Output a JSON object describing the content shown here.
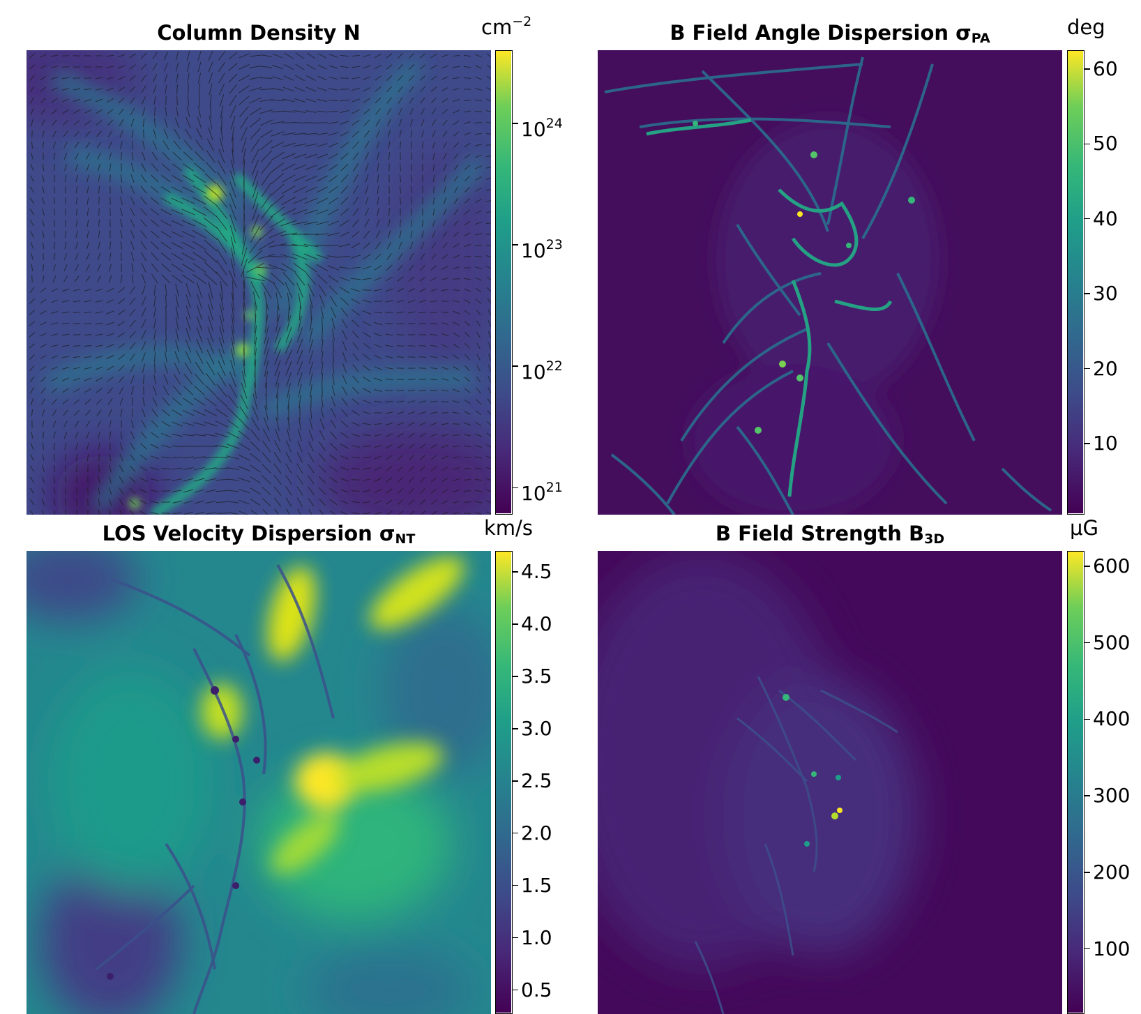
{
  "chart_data": [
    {
      "type": "heatmap",
      "title": "Column Density N",
      "title_sub": "",
      "colorbar_unit": "cm",
      "colorbar_unit_sup": "−2",
      "colormap": "viridis",
      "colorbar_scale": "log",
      "colorbar_range": [
        6e+20,
        4e+24
      ],
      "colorbar_ticks": [
        {
          "base": "10",
          "exp": "21",
          "value": 1e+21
        },
        {
          "base": "10",
          "exp": "22",
          "value": 1e+22
        },
        {
          "base": "10",
          "exp": "23",
          "value": 1e+23
        },
        {
          "base": "10",
          "exp": "24",
          "value": 1e+24
        }
      ],
      "overlay": "magnetic field vectors"
    },
    {
      "type": "heatmap",
      "title": "B Field Angle Dispersion σ",
      "title_sub": "PA",
      "colorbar_unit": "deg",
      "colorbar_unit_sup": "",
      "colormap": "viridis",
      "colorbar_scale": "linear",
      "colorbar_range": [
        0.5,
        62.5
      ],
      "colorbar_ticks": [
        {
          "base": "10",
          "exp": "",
          "value": 10
        },
        {
          "base": "20",
          "exp": "",
          "value": 20
        },
        {
          "base": "30",
          "exp": "",
          "value": 30
        },
        {
          "base": "40",
          "exp": "",
          "value": 40
        },
        {
          "base": "50",
          "exp": "",
          "value": 50
        },
        {
          "base": "60",
          "exp": "",
          "value": 60
        }
      ]
    },
    {
      "type": "heatmap",
      "title": "LOS Velocity Dispersion σ",
      "title_sub": "NT",
      "colorbar_unit": "km/s",
      "colorbar_unit_sup": "",
      "colormap": "viridis",
      "colorbar_scale": "linear",
      "colorbar_range": [
        0.27,
        4.7
      ],
      "colorbar_ticks": [
        {
          "base": "0.5",
          "exp": "",
          "value": 0.5
        },
        {
          "base": "1.0",
          "exp": "",
          "value": 1.0
        },
        {
          "base": "1.5",
          "exp": "",
          "value": 1.5
        },
        {
          "base": "2.0",
          "exp": "",
          "value": 2.0
        },
        {
          "base": "2.5",
          "exp": "",
          "value": 2.5
        },
        {
          "base": "3.0",
          "exp": "",
          "value": 3.0
        },
        {
          "base": "3.5",
          "exp": "",
          "value": 3.5
        },
        {
          "base": "4.0",
          "exp": "",
          "value": 4.0
        },
        {
          "base": "4.5",
          "exp": "",
          "value": 4.5
        }
      ]
    },
    {
      "type": "heatmap",
      "title": "B Field Strength B",
      "title_sub": "3D",
      "colorbar_unit": "μG",
      "colorbar_unit_sup": "",
      "colormap": "viridis",
      "colorbar_scale": "linear",
      "colorbar_range": [
        15,
        620
      ],
      "colorbar_ticks": [
        {
          "base": "100",
          "exp": "",
          "value": 100
        },
        {
          "base": "200",
          "exp": "",
          "value": 200
        },
        {
          "base": "300",
          "exp": "",
          "value": 300
        },
        {
          "base": "400",
          "exp": "",
          "value": 400
        },
        {
          "base": "500",
          "exp": "",
          "value": 500
        },
        {
          "base": "600",
          "exp": "",
          "value": 600
        }
      ]
    }
  ]
}
